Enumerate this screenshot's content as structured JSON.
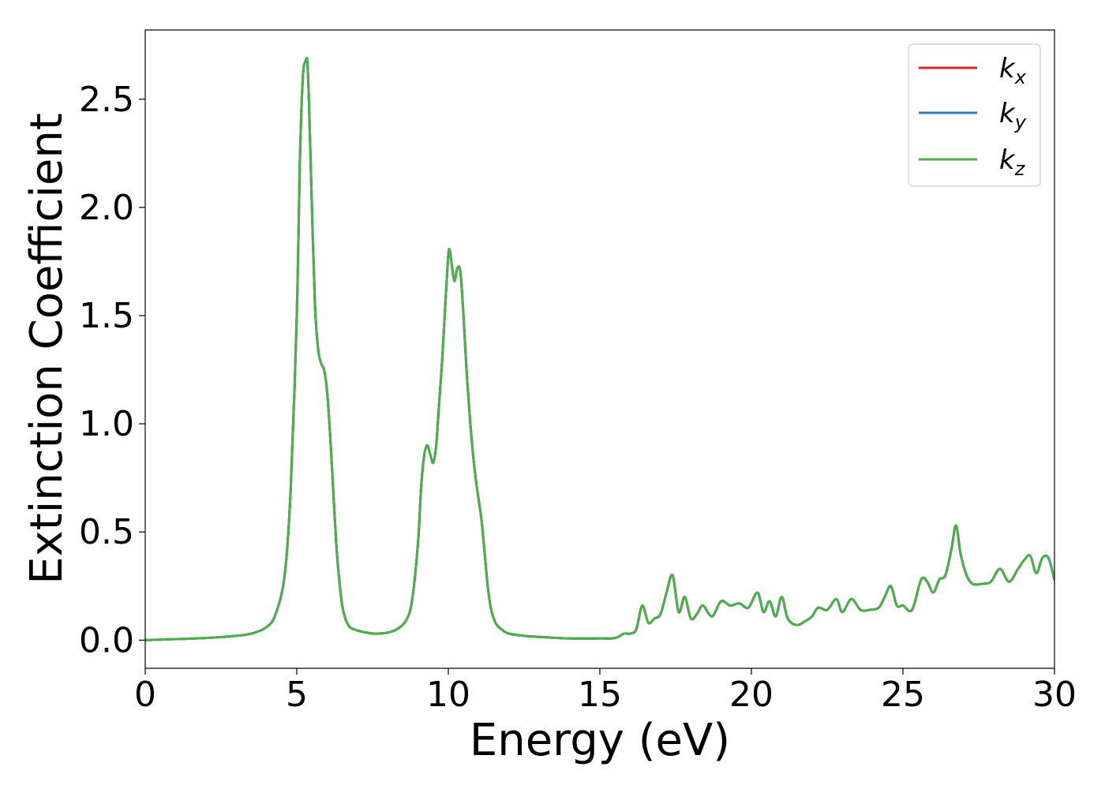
{
  "chart_data": {
    "type": "line",
    "xlabel": "Energy (eV)",
    "ylabel": "Extinction Coefficient",
    "xlim": [
      0,
      30
    ],
    "ylim": [
      -0.13,
      2.82
    ],
    "xticks": [
      "0",
      "5",
      "10",
      "15",
      "20",
      "25",
      "30"
    ],
    "yticks": [
      "0.0",
      "0.5",
      "1.0",
      "1.5",
      "2.0",
      "2.5"
    ],
    "xtick_values": [
      0,
      5,
      10,
      15,
      20,
      25,
      30
    ],
    "ytick_values": [
      0.0,
      0.5,
      1.0,
      1.5,
      2.0,
      2.5
    ],
    "grid": false,
    "legend_position": "top-right",
    "series": [
      {
        "name": "k",
        "subscript": "x",
        "color": "#d62728",
        "x": [
          0,
          1,
          2,
          3,
          3.5,
          4,
          4.3,
          4.6,
          4.8,
          5.0,
          5.1,
          5.2,
          5.3,
          5.35,
          5.4,
          5.5,
          5.6,
          5.7,
          5.8,
          5.9,
          6.0,
          6.1,
          6.2,
          6.3,
          6.4,
          6.5,
          6.6,
          6.7,
          6.8,
          7.0,
          7.3,
          7.6,
          8.0,
          8.3,
          8.6,
          8.8,
          9.0,
          9.1,
          9.2,
          9.3,
          9.4,
          9.5,
          9.6,
          9.7,
          9.8,
          9.9,
          10.0,
          10.05,
          10.1,
          10.2,
          10.3,
          10.4,
          10.5,
          10.6,
          10.7,
          10.8,
          10.9,
          11.0,
          11.1,
          11.2,
          11.3,
          11.4,
          11.5,
          11.6,
          11.8,
          12.0,
          12.5,
          13,
          14,
          15,
          15.5,
          15.8,
          16.0,
          16.2,
          16.4,
          16.6,
          16.8,
          17.0,
          17.2,
          17.4,
          17.6,
          17.8,
          18.0,
          18.2,
          18.4,
          18.7,
          19.0,
          19.3,
          19.6,
          19.9,
          20.2,
          20.4,
          20.6,
          20.8,
          21.0,
          21.2,
          21.5,
          21.8,
          22.0,
          22.2,
          22.5,
          22.8,
          23.0,
          23.3,
          23.6,
          23.9,
          24.2,
          24.4,
          24.6,
          24.8,
          25.0,
          25.3,
          25.6,
          25.8,
          26.0,
          26.2,
          26.4,
          26.6,
          26.75,
          26.9,
          27.1,
          27.3,
          27.6,
          27.9,
          28.2,
          28.5,
          28.8,
          29.0,
          29.2,
          29.4,
          29.6,
          29.8,
          30.0
        ],
        "y": [
          0.0,
          0.005,
          0.01,
          0.02,
          0.03,
          0.06,
          0.12,
          0.3,
          0.7,
          1.5,
          2.2,
          2.6,
          2.68,
          2.67,
          2.5,
          2.0,
          1.55,
          1.35,
          1.28,
          1.25,
          1.15,
          0.95,
          0.7,
          0.45,
          0.28,
          0.16,
          0.1,
          0.07,
          0.055,
          0.045,
          0.035,
          0.03,
          0.035,
          0.05,
          0.09,
          0.18,
          0.45,
          0.7,
          0.85,
          0.9,
          0.86,
          0.82,
          0.9,
          1.1,
          1.3,
          1.55,
          1.78,
          1.8,
          1.75,
          1.66,
          1.72,
          1.7,
          1.5,
          1.25,
          1.05,
          0.88,
          0.75,
          0.65,
          0.55,
          0.4,
          0.25,
          0.15,
          0.1,
          0.07,
          0.045,
          0.03,
          0.02,
          0.015,
          0.008,
          0.008,
          0.01,
          0.03,
          0.03,
          0.05,
          0.16,
          0.08,
          0.1,
          0.12,
          0.22,
          0.3,
          0.13,
          0.2,
          0.1,
          0.12,
          0.16,
          0.11,
          0.18,
          0.16,
          0.17,
          0.15,
          0.22,
          0.13,
          0.18,
          0.11,
          0.2,
          0.1,
          0.07,
          0.09,
          0.11,
          0.15,
          0.14,
          0.19,
          0.13,
          0.19,
          0.14,
          0.14,
          0.15,
          0.2,
          0.25,
          0.16,
          0.16,
          0.14,
          0.28,
          0.27,
          0.22,
          0.28,
          0.3,
          0.42,
          0.53,
          0.4,
          0.3,
          0.26,
          0.26,
          0.27,
          0.33,
          0.27,
          0.33,
          0.37,
          0.39,
          0.31,
          0.38,
          0.38,
          0.28
        ]
      },
      {
        "name": "k",
        "subscript": "y",
        "color": "#377eb8",
        "x": [
          0,
          1,
          2,
          3,
          3.5,
          4,
          4.3,
          4.6,
          4.8,
          5.0,
          5.1,
          5.2,
          5.3,
          5.35,
          5.4,
          5.5,
          5.6,
          5.7,
          5.8,
          5.9,
          6.0,
          6.1,
          6.2,
          6.3,
          6.4,
          6.5,
          6.6,
          6.7,
          6.8,
          7.0,
          7.3,
          7.6,
          8.0,
          8.3,
          8.6,
          8.8,
          9.0,
          9.1,
          9.2,
          9.3,
          9.4,
          9.5,
          9.6,
          9.7,
          9.8,
          9.9,
          10.0,
          10.05,
          10.1,
          10.2,
          10.3,
          10.4,
          10.5,
          10.6,
          10.7,
          10.8,
          10.9,
          11.0,
          11.1,
          11.2,
          11.3,
          11.4,
          11.5,
          11.6,
          11.8,
          12.0,
          12.5,
          13,
          14,
          15,
          15.5,
          15.8,
          16.0,
          16.2,
          16.4,
          16.6,
          16.8,
          17.0,
          17.2,
          17.4,
          17.6,
          17.8,
          18.0,
          18.2,
          18.4,
          18.7,
          19.0,
          19.3,
          19.6,
          19.9,
          20.2,
          20.4,
          20.6,
          20.8,
          21.0,
          21.2,
          21.5,
          21.8,
          22.0,
          22.2,
          22.5,
          22.8,
          23.0,
          23.3,
          23.6,
          23.9,
          24.2,
          24.4,
          24.6,
          24.8,
          25.0,
          25.3,
          25.6,
          25.8,
          26.0,
          26.2,
          26.4,
          26.6,
          26.75,
          26.9,
          27.1,
          27.3,
          27.6,
          27.9,
          28.2,
          28.5,
          28.8,
          29.0,
          29.2,
          29.4,
          29.6,
          29.8,
          30.0
        ],
        "y": [
          0.0,
          0.005,
          0.01,
          0.02,
          0.03,
          0.06,
          0.12,
          0.3,
          0.7,
          1.5,
          2.2,
          2.6,
          2.68,
          2.67,
          2.5,
          2.0,
          1.55,
          1.35,
          1.28,
          1.25,
          1.15,
          0.95,
          0.7,
          0.45,
          0.28,
          0.16,
          0.1,
          0.07,
          0.055,
          0.045,
          0.035,
          0.03,
          0.035,
          0.05,
          0.09,
          0.18,
          0.45,
          0.7,
          0.85,
          0.9,
          0.86,
          0.82,
          0.9,
          1.1,
          1.3,
          1.55,
          1.78,
          1.8,
          1.75,
          1.66,
          1.72,
          1.7,
          1.5,
          1.25,
          1.05,
          0.88,
          0.75,
          0.65,
          0.55,
          0.4,
          0.25,
          0.15,
          0.1,
          0.07,
          0.045,
          0.03,
          0.02,
          0.015,
          0.008,
          0.008,
          0.01,
          0.03,
          0.03,
          0.05,
          0.16,
          0.08,
          0.1,
          0.12,
          0.22,
          0.3,
          0.13,
          0.2,
          0.1,
          0.12,
          0.16,
          0.11,
          0.18,
          0.16,
          0.17,
          0.15,
          0.22,
          0.13,
          0.18,
          0.11,
          0.2,
          0.1,
          0.07,
          0.09,
          0.11,
          0.15,
          0.14,
          0.19,
          0.13,
          0.19,
          0.14,
          0.14,
          0.15,
          0.2,
          0.25,
          0.16,
          0.16,
          0.14,
          0.28,
          0.27,
          0.22,
          0.28,
          0.3,
          0.42,
          0.53,
          0.4,
          0.3,
          0.26,
          0.26,
          0.27,
          0.33,
          0.27,
          0.33,
          0.37,
          0.39,
          0.31,
          0.38,
          0.38,
          0.28
        ]
      },
      {
        "name": "k",
        "subscript": "z",
        "color": "#4daf4a",
        "x": [
          0,
          1,
          2,
          3,
          3.5,
          4,
          4.3,
          4.6,
          4.8,
          5.0,
          5.1,
          5.2,
          5.3,
          5.35,
          5.4,
          5.5,
          5.6,
          5.7,
          5.8,
          5.9,
          6.0,
          6.1,
          6.2,
          6.3,
          6.4,
          6.5,
          6.6,
          6.7,
          6.8,
          7.0,
          7.3,
          7.6,
          8.0,
          8.3,
          8.6,
          8.8,
          9.0,
          9.1,
          9.2,
          9.3,
          9.4,
          9.5,
          9.6,
          9.7,
          9.8,
          9.9,
          10.0,
          10.05,
          10.1,
          10.2,
          10.3,
          10.4,
          10.5,
          10.6,
          10.7,
          10.8,
          10.9,
          11.0,
          11.1,
          11.2,
          11.3,
          11.4,
          11.5,
          11.6,
          11.8,
          12.0,
          12.5,
          13,
          14,
          15,
          15.5,
          15.8,
          16.0,
          16.2,
          16.4,
          16.6,
          16.8,
          17.0,
          17.2,
          17.4,
          17.6,
          17.8,
          18.0,
          18.2,
          18.4,
          18.7,
          19.0,
          19.3,
          19.6,
          19.9,
          20.2,
          20.4,
          20.6,
          20.8,
          21.0,
          21.2,
          21.5,
          21.8,
          22.0,
          22.2,
          22.5,
          22.8,
          23.0,
          23.3,
          23.6,
          23.9,
          24.2,
          24.4,
          24.6,
          24.8,
          25.0,
          25.3,
          25.6,
          25.8,
          26.0,
          26.2,
          26.4,
          26.6,
          26.75,
          26.9,
          27.1,
          27.3,
          27.6,
          27.9,
          28.2,
          28.5,
          28.8,
          29.0,
          29.2,
          29.4,
          29.6,
          29.8,
          30.0
        ],
        "y": [
          0.0,
          0.005,
          0.01,
          0.02,
          0.03,
          0.06,
          0.12,
          0.3,
          0.7,
          1.5,
          2.2,
          2.6,
          2.68,
          2.67,
          2.5,
          2.0,
          1.55,
          1.35,
          1.28,
          1.25,
          1.15,
          0.95,
          0.7,
          0.45,
          0.28,
          0.16,
          0.1,
          0.07,
          0.055,
          0.045,
          0.035,
          0.03,
          0.035,
          0.05,
          0.09,
          0.18,
          0.45,
          0.7,
          0.85,
          0.9,
          0.86,
          0.82,
          0.9,
          1.1,
          1.3,
          1.55,
          1.78,
          1.8,
          1.75,
          1.66,
          1.72,
          1.7,
          1.5,
          1.25,
          1.05,
          0.88,
          0.75,
          0.65,
          0.55,
          0.4,
          0.25,
          0.15,
          0.1,
          0.07,
          0.045,
          0.03,
          0.02,
          0.015,
          0.008,
          0.008,
          0.01,
          0.03,
          0.03,
          0.05,
          0.16,
          0.08,
          0.1,
          0.12,
          0.22,
          0.3,
          0.13,
          0.2,
          0.1,
          0.12,
          0.16,
          0.11,
          0.18,
          0.16,
          0.17,
          0.15,
          0.22,
          0.13,
          0.18,
          0.11,
          0.2,
          0.1,
          0.07,
          0.09,
          0.11,
          0.15,
          0.14,
          0.19,
          0.13,
          0.19,
          0.14,
          0.14,
          0.15,
          0.2,
          0.25,
          0.16,
          0.16,
          0.14,
          0.28,
          0.27,
          0.22,
          0.28,
          0.3,
          0.42,
          0.53,
          0.4,
          0.3,
          0.26,
          0.26,
          0.27,
          0.33,
          0.27,
          0.33,
          0.37,
          0.39,
          0.31,
          0.38,
          0.38,
          0.28
        ]
      }
    ]
  }
}
